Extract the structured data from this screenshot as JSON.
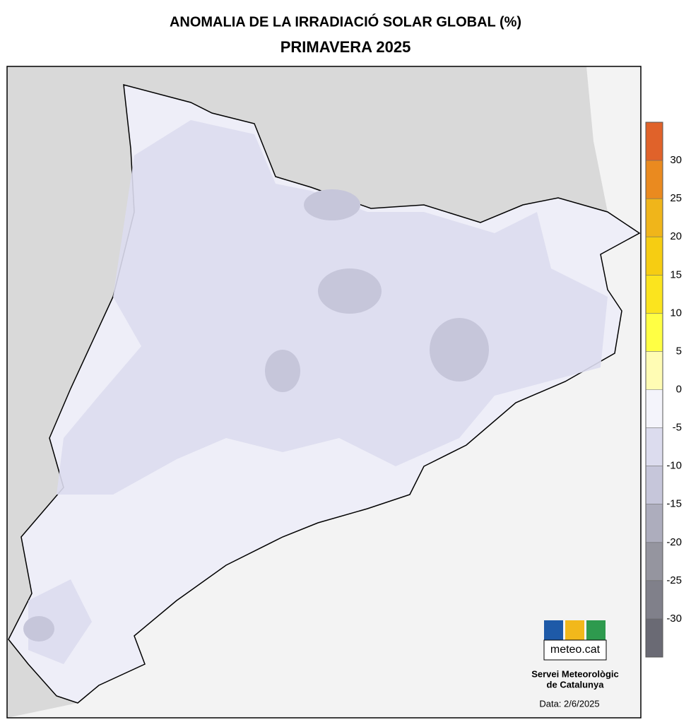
{
  "header": {
    "title": "ANOMALIA DE LA IRRADIACIÓ SOLAR GLOBAL (%)",
    "subtitle": "PRIMAVERA 2025"
  },
  "legend": {
    "lim": [
      -35,
      35
    ],
    "ticks": [
      30,
      25,
      20,
      15,
      10,
      5,
      0,
      -5,
      -10,
      -15,
      -20,
      -25,
      -30
    ],
    "colors": [
      "#e0622a",
      "#ea8a1f",
      "#f0b51a",
      "#f6cd12",
      "#fbe41e",
      "#ffff44",
      "#fffcb4",
      "#f4f4fb",
      "#dcdcee",
      "#c6c6da",
      "#adadbd",
      "#95959f",
      "#80808a",
      "#6a6a74"
    ]
  },
  "footer": {
    "logo": "meteo.cat",
    "org_line1": "Servei Meteorològic",
    "org_line2": "de Catalunya",
    "date": "Data: 2/6/2025"
  }
}
